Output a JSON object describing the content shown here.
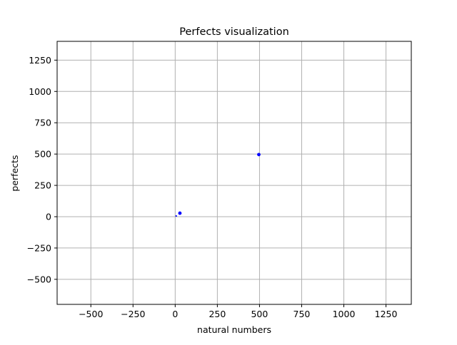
{
  "chart_data": {
    "type": "scatter",
    "title": "Perfects visualization",
    "xlabel": "natural numbers",
    "ylabel": "perfects",
    "xlim": [
      -700,
      1400
    ],
    "ylim": [
      -700,
      1400
    ],
    "x_ticks": [
      -500,
      -250,
      0,
      250,
      500,
      750,
      1000,
      1250
    ],
    "x_tick_labels": [
      "−500",
      "−250",
      "0",
      "250",
      "500",
      "750",
      "1000",
      "1250"
    ],
    "y_ticks": [
      -500,
      -250,
      0,
      250,
      500,
      750,
      1000,
      1250
    ],
    "y_tick_labels": [
      "−500",
      "−250",
      "0",
      "250",
      "500",
      "750",
      "1000",
      "1250"
    ],
    "grid": true,
    "points": [
      {
        "x": 6,
        "y": 6
      },
      {
        "x": 28,
        "y": 28
      },
      {
        "x": 496,
        "y": 496
      }
    ],
    "point_color": "#0000ff"
  }
}
